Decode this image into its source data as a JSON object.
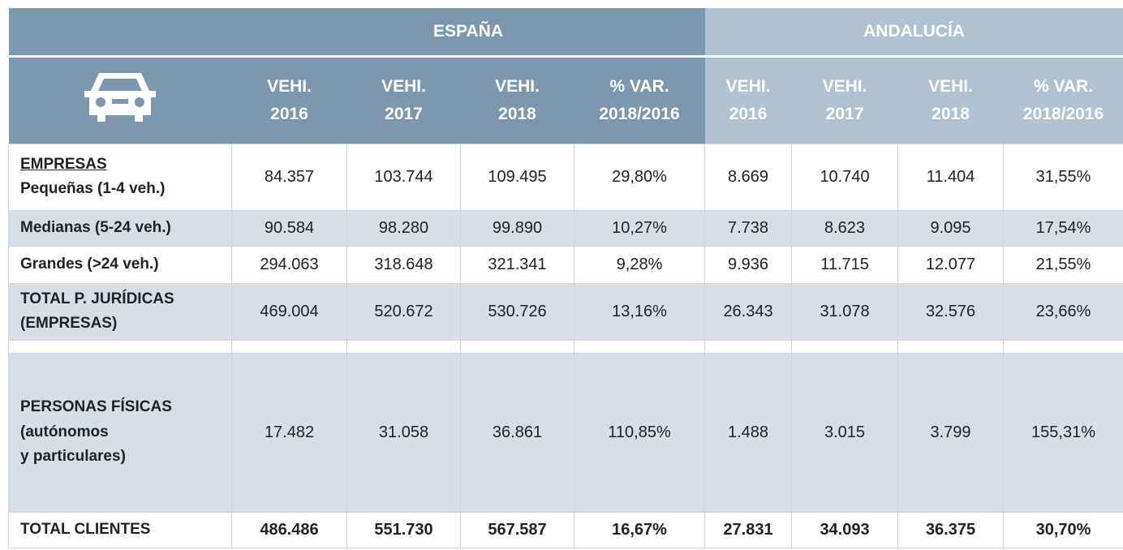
{
  "header": {
    "groups": [
      "ESPAÑA",
      "ANDALUCÍA"
    ],
    "columns": [
      [
        "VEHI.",
        "2016"
      ],
      [
        "VEHI.",
        "2017"
      ],
      [
        "VEHI.",
        "2018"
      ],
      [
        "% VAR.",
        "2018/2016"
      ],
      [
        "VEHI.",
        "2016"
      ],
      [
        "VEHI.",
        "2017"
      ],
      [
        "VEHI.",
        "2018"
      ],
      [
        "% VAR.",
        "2018/2016"
      ]
    ]
  },
  "rows": [
    {
      "label": [
        "EMPRESAS",
        "Pequeñas (1-4 veh.)"
      ],
      "cells": [
        "84.357",
        "103.744",
        "109.495",
        "29,80%",
        "8.669",
        "10.740",
        "11.404",
        "31,55%"
      ]
    },
    {
      "label": [
        "Medianas (5-24 veh.)"
      ],
      "cells": [
        "90.584",
        "98.280",
        "99.890",
        "10,27%",
        "7.738",
        "8.623",
        "9.095",
        "17,54%"
      ]
    },
    {
      "label": [
        "Grandes (>24 veh.)"
      ],
      "cells": [
        "294.063",
        "318.648",
        "321.341",
        "9,28%",
        "9.936",
        "11.715",
        "12.077",
        "21,55%"
      ]
    },
    {
      "label": [
        "TOTAL P. JURÍDICAS",
        "(EMPRESAS)"
      ],
      "cells": [
        "469.004",
        "520.672",
        "530.726",
        "13,16%",
        "26.343",
        "31.078",
        "32.576",
        "23,66%"
      ]
    },
    {
      "label": [
        "PERSONAS FÍSICAS",
        "(autónomos",
        "y particulares)"
      ],
      "cells": [
        "17.482",
        "31.058",
        "36.861",
        "110,85%",
        "1.488",
        "3.015",
        "3.799",
        "155,31%"
      ]
    },
    {
      "label": [
        "TOTAL CLIENTES"
      ],
      "cells": [
        "486.486",
        "551.730",
        "567.587",
        "16,67%",
        "27.831",
        "34.093",
        "36.375",
        "30,70%"
      ]
    }
  ]
}
